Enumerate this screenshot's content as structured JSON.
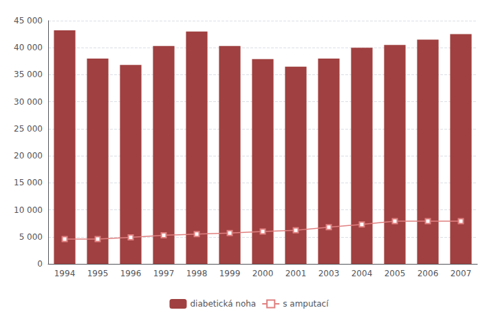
{
  "chart_data": {
    "type": "bar",
    "categories": [
      "1994",
      "1995",
      "1996",
      "1997",
      "1998",
      "1999",
      "2000",
      "2001",
      "2003",
      "2004",
      "2005",
      "2006",
      "2007"
    ],
    "series": [
      {
        "name": "diabetická noha",
        "type": "bar",
        "color": "#a04040",
        "values": [
          43200,
          38000,
          36800,
          40300,
          43000,
          40300,
          37900,
          36500,
          38000,
          40000,
          40500,
          41500,
          42500
        ]
      },
      {
        "name": "s amputací",
        "type": "line",
        "color": "#e08080",
        "marker": "square",
        "values": [
          4600,
          4600,
          4900,
          5300,
          5500,
          5700,
          6000,
          6200,
          6800,
          7300,
          7900,
          7900,
          7900
        ]
      }
    ],
    "ylim": [
      0,
      45000
    ],
    "yticks": [
      0,
      {
        "value": 5000,
        "label": "5 000"
      },
      {
        "value": 10000,
        "label": "10 000"
      },
      {
        "value": 15000,
        "label": "15 000"
      },
      {
        "value": 20000,
        "label": "20 000"
      },
      {
        "value": 25000,
        "label": "25 000"
      },
      {
        "value": 30000,
        "label": "30 000"
      },
      {
        "value": 35000,
        "label": "35 000"
      },
      {
        "value": 40000,
        "label": "40 000"
      },
      {
        "value": 45000,
        "label": "45 000"
      }
    ],
    "grid": true,
    "legend": "bottom"
  }
}
